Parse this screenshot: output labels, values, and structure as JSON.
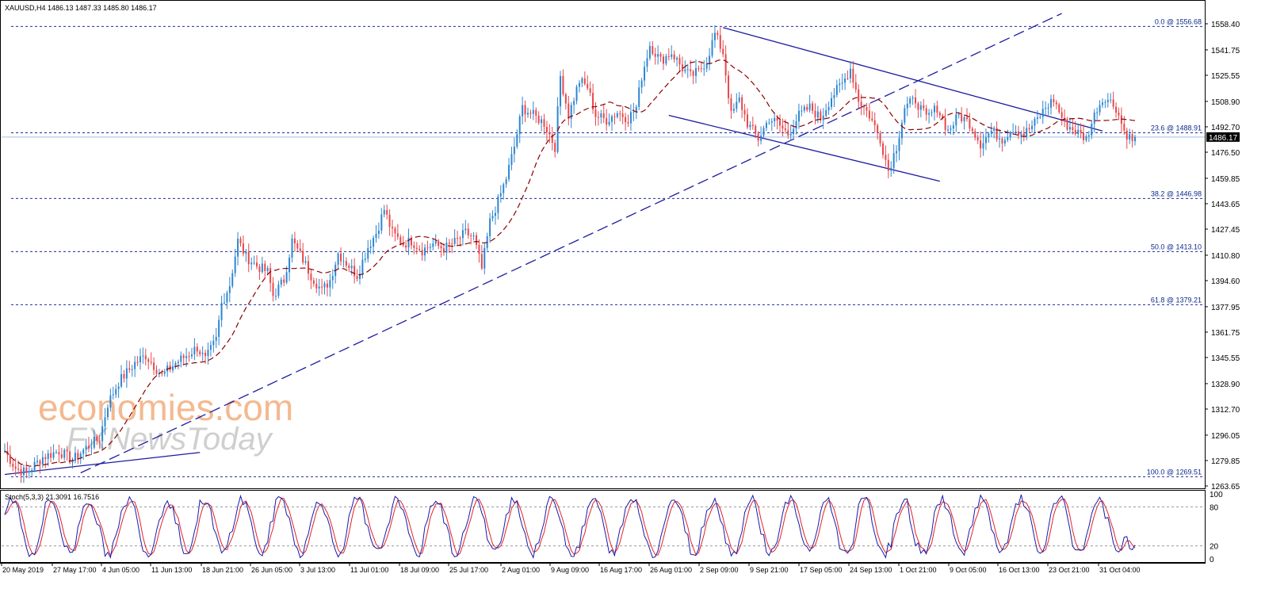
{
  "header": {
    "title": "XAUUSD,H4  1486.13 1487.33 1485.80 1486.17"
  },
  "watermark": {
    "line1": "economies.com",
    "line2": "FXNewsToday"
  },
  "colors": {
    "bull": "#2e86d1",
    "bear": "#e8474b",
    "ma": "#8b0000",
    "trend": "#1c1ca0",
    "fib": "#1e2a9a",
    "stoch_main": "#1a1aa8",
    "stoch_signal": "#e0232a",
    "current_price_bg": "#000000",
    "watermark_orange": "#f4b990",
    "watermark_gray": "#cfcfcf"
  },
  "chart_data": [
    {
      "type": "candlestick",
      "symbol": "XAUUSD",
      "timeframe": "H4",
      "ohlc_header": {
        "open": 1486.13,
        "high": 1487.33,
        "low": 1485.8,
        "close": 1486.17
      },
      "ylim": [
        1263.65,
        1558.4
      ],
      "y_ticks": [
        "1558.40",
        "1541.75",
        "1525.55",
        "1508.90",
        "1492.70",
        "1476.50",
        "1459.85",
        "1443.65",
        "1427.45",
        "1410.80",
        "1394.60",
        "1377.95",
        "1361.75",
        "1345.55",
        "1328.90",
        "1312.70",
        "1296.05",
        "1279.85",
        "1263.65"
      ],
      "current_price": "1486.17",
      "x_ticks": [
        "20 May 2019",
        "27 May 17:00",
        "4 Jun 05:00",
        "11 Jun 13:00",
        "18 Jun 21:00",
        "26 Jun 05:00",
        "3 Jul 13:00",
        "11 Jul 01:00",
        "18 Jul 09:00",
        "25 Jul 17:00",
        "2 Aug 01:00",
        "9 Aug 09:00",
        "16 Aug 17:00",
        "26 Aug 01:00",
        "2 Sep 09:00",
        "9 Sep 21:00",
        "17 Sep 05:00",
        "24 Sep 13:00",
        "1 Oct 21:00",
        "9 Oct 05:00",
        "16 Oct 13:00",
        "23 Oct 21:00",
        "31 Oct 04:00"
      ],
      "price_path": [
        [
          0,
          1286
        ],
        [
          4,
          1275
        ],
        [
          8,
          1272
        ],
        [
          14,
          1282
        ],
        [
          20,
          1286
        ],
        [
          25,
          1280
        ],
        [
          30,
          1288
        ],
        [
          35,
          1294
        ],
        [
          38,
          1316
        ],
        [
          42,
          1330
        ],
        [
          48,
          1342
        ],
        [
          52,
          1347
        ],
        [
          58,
          1334
        ],
        [
          63,
          1342
        ],
        [
          68,
          1348
        ],
        [
          71,
          1352
        ],
        [
          74,
          1344
        ],
        [
          78,
          1357
        ],
        [
          80,
          1380
        ],
        [
          83,
          1392
        ],
        [
          86,
          1420
        ],
        [
          89,
          1410
        ],
        [
          93,
          1404
        ],
        [
          97,
          1400
        ],
        [
          99,
          1385
        ],
        [
          103,
          1395
        ],
        [
          106,
          1420
        ],
        [
          110,
          1408
        ],
        [
          113,
          1398
        ],
        [
          117,
          1388
        ],
        [
          120,
          1395
        ],
        [
          123,
          1412
        ],
        [
          127,
          1404
        ],
        [
          130,
          1398
        ],
        [
          134,
          1416
        ],
        [
          137,
          1425
        ],
        [
          140,
          1440
        ],
        [
          143,
          1425
        ],
        [
          147,
          1418
        ],
        [
          150,
          1420
        ],
        [
          154,
          1414
        ],
        [
          158,
          1418
        ],
        [
          162,
          1415
        ],
        [
          166,
          1419
        ],
        [
          170,
          1425
        ],
        [
          173,
          1422
        ],
        [
          176,
          1402
        ],
        [
          179,
          1432
        ],
        [
          182,
          1445
        ],
        [
          185,
          1460
        ],
        [
          188,
          1480
        ],
        [
          191,
          1505
        ],
        [
          195,
          1500
        ],
        [
          199,
          1495
        ],
        [
          203,
          1480
        ],
        [
          205,
          1525
        ],
        [
          208,
          1500
        ],
        [
          212,
          1522
        ],
        [
          215,
          1518
        ],
        [
          218,
          1500
        ],
        [
          222,
          1497
        ],
        [
          226,
          1502
        ],
        [
          230,
          1498
        ],
        [
          233,
          1505
        ],
        [
          235,
          1525
        ],
        [
          238,
          1545
        ],
        [
          242,
          1535
        ],
        [
          246,
          1540
        ],
        [
          250,
          1530
        ],
        [
          253,
          1525
        ],
        [
          256,
          1528
        ],
        [
          259,
          1535
        ],
        [
          262,
          1552
        ],
        [
          265,
          1540
        ],
        [
          268,
          1500
        ],
        [
          271,
          1510
        ],
        [
          274,
          1495
        ],
        [
          278,
          1485
        ],
        [
          282,
          1498
        ],
        [
          285,
          1495
        ],
        [
          289,
          1488
        ],
        [
          293,
          1500
        ],
        [
          297,
          1505
        ],
        [
          301,
          1498
        ],
        [
          305,
          1512
        ],
        [
          309,
          1520
        ],
        [
          312,
          1530
        ],
        [
          315,
          1510
        ],
        [
          319,
          1500
        ],
        [
          323,
          1485
        ],
        [
          326,
          1465
        ],
        [
          329,
          1480
        ],
        [
          332,
          1505
        ],
        [
          336,
          1510
        ],
        [
          340,
          1498
        ],
        [
          344,
          1505
        ],
        [
          348,
          1490
        ],
        [
          352,
          1500
        ],
        [
          356,
          1495
        ],
        [
          360,
          1482
        ],
        [
          364,
          1490
        ],
        [
          368,
          1485
        ],
        [
          372,
          1492
        ],
        [
          376,
          1488
        ],
        [
          380,
          1495
        ],
        [
          384,
          1505
        ],
        [
          387,
          1510
        ],
        [
          391,
          1495
        ],
        [
          395,
          1490
        ],
        [
          399,
          1485
        ],
        [
          403,
          1505
        ],
        [
          406,
          1512
        ],
        [
          410,
          1505
        ],
        [
          413,
          1490
        ],
        [
          416,
          1484
        ],
        [
          417,
          1486.17
        ]
      ],
      "moving_average": "dashed, period not printed",
      "fibonacci": [
        {
          "label": "0.0 @ 1556.68",
          "value": 1556.68
        },
        {
          "label": "23.6 @ 1488.91",
          "value": 1488.91
        },
        {
          "label": "38.2 @ 1446.98",
          "value": 1446.98
        },
        {
          "label": "50.0 @ 1413.10",
          "value": 1413.1
        },
        {
          "label": "61.8 @ 1379.21",
          "value": 1379.21
        },
        {
          "label": "100.0 @ 1269.51",
          "value": 1269.51
        }
      ],
      "trend_lines": [
        {
          "style": "solid",
          "from": [
            0,
            1271
          ],
          "to": [
            72,
            1285
          ]
        },
        {
          "style": "dashed",
          "from": [
            28,
            1272
          ],
          "to": [
            390,
            1565
          ]
        },
        {
          "style": "solid",
          "from": [
            265,
            1556
          ],
          "to": [
            405,
            1490
          ]
        },
        {
          "style": "solid",
          "from": [
            245,
            1500
          ],
          "to": [
            345,
            1458
          ]
        }
      ],
      "grid": false
    },
    {
      "type": "line",
      "label": "Stoch(5,3,3) 21.3091 16.7516",
      "ylim": [
        0,
        100
      ],
      "y_ticks": [
        "100",
        "80",
        "20",
        "0"
      ],
      "levels": [
        80,
        20
      ],
      "series": [
        {
          "name": "main",
          "last": 21.3091
        },
        {
          "name": "signal",
          "last": 16.7516
        }
      ]
    }
  ]
}
